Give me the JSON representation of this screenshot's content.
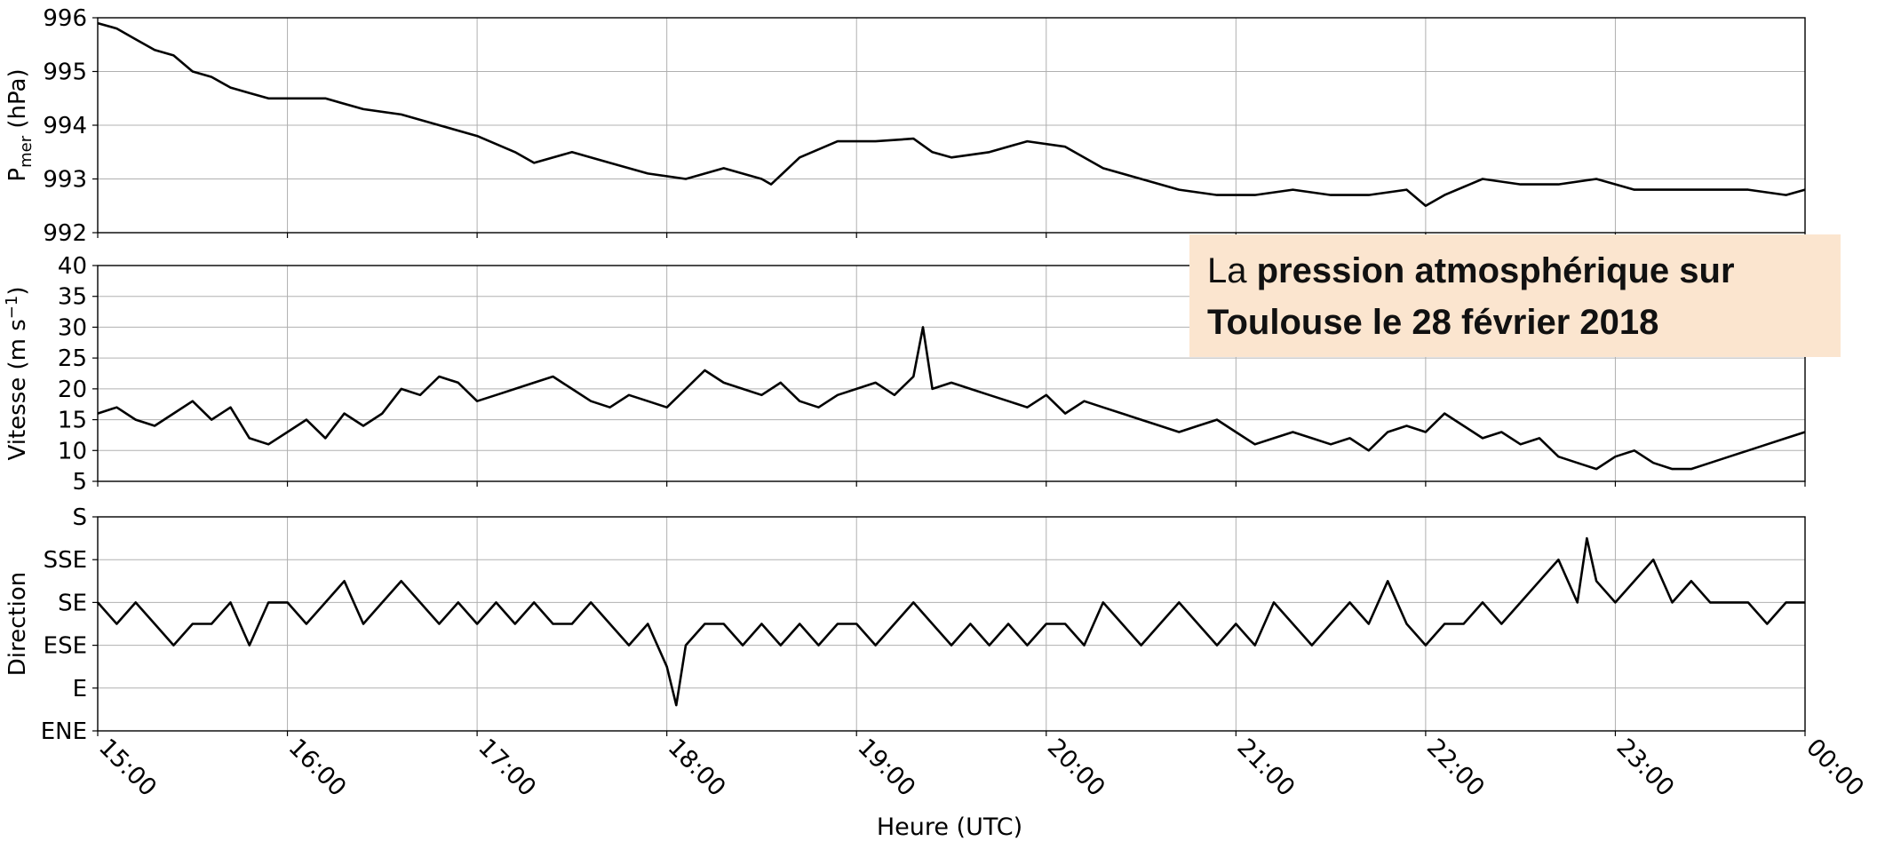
{
  "colors": {
    "line": "#000000",
    "grid": "#b0b0b0",
    "annotation_bg": "#fbe5cf"
  },
  "annotation": {
    "prefix": "La ",
    "line1_bold": "pression atmosphérique sur",
    "line2_bold": "Toulouse le 28 février 2018"
  },
  "chart_data": [
    {
      "type": "line",
      "panel": "pressure",
      "ylabel_main": "P",
      "ylabel_sub": "mer",
      "ylabel_rest": " (hPa)",
      "ylim": [
        992,
        996
      ],
      "yticks": [
        "992",
        "993",
        "994",
        "995",
        "996"
      ],
      "xlim": [
        15,
        24
      ],
      "grid": true,
      "series": [
        {
          "x": [
            15.0,
            15.1,
            15.2,
            15.3,
            15.4,
            15.5,
            15.6,
            15.7,
            15.8,
            15.9,
            16.0,
            16.2,
            16.4,
            16.6,
            16.8,
            17.0,
            17.2,
            17.3,
            17.5,
            17.7,
            17.9,
            18.1,
            18.3,
            18.5,
            18.55,
            18.7,
            18.9,
            19.1,
            19.3,
            19.4,
            19.5,
            19.7,
            19.9,
            20.1,
            20.3,
            20.5,
            20.7,
            20.9,
            21.1,
            21.3,
            21.5,
            21.7,
            21.9,
            22.0,
            22.1,
            22.3,
            22.5,
            22.7,
            22.9,
            23.1,
            23.3,
            23.5,
            23.7,
            23.9,
            24.0
          ],
          "y": [
            995.9,
            995.8,
            995.6,
            995.4,
            995.3,
            995.0,
            994.9,
            994.7,
            994.6,
            994.5,
            994.5,
            994.5,
            994.3,
            994.2,
            994.0,
            993.8,
            993.5,
            993.3,
            993.5,
            993.3,
            993.1,
            993.0,
            993.2,
            993.0,
            992.9,
            993.4,
            993.7,
            993.7,
            993.75,
            993.5,
            993.4,
            993.5,
            993.7,
            993.6,
            993.2,
            993.0,
            992.8,
            992.7,
            992.7,
            992.8,
            992.7,
            992.7,
            992.8,
            992.5,
            992.7,
            993.0,
            992.9,
            992.9,
            993.0,
            992.8,
            992.8,
            992.8,
            992.8,
            992.7,
            992.8
          ]
        }
      ]
    },
    {
      "type": "line",
      "panel": "speed",
      "ylabel": "Vitesse (m s",
      "ylabel_sup": "−1",
      "ylabel_end": ")",
      "ylim": [
        5,
        40
      ],
      "yticks": [
        "5",
        "10",
        "15",
        "20",
        "25",
        "30",
        "35",
        "40"
      ],
      "xlim": [
        15,
        24
      ],
      "grid": true,
      "series": [
        {
          "x": [
            15.0,
            15.1,
            15.2,
            15.3,
            15.4,
            15.5,
            15.6,
            15.7,
            15.8,
            15.9,
            16.0,
            16.1,
            16.2,
            16.3,
            16.4,
            16.5,
            16.6,
            16.7,
            16.8,
            16.9,
            17.0,
            17.1,
            17.2,
            17.3,
            17.4,
            17.5,
            17.6,
            17.7,
            17.8,
            17.9,
            18.0,
            18.1,
            18.2,
            18.3,
            18.4,
            18.5,
            18.6,
            18.7,
            18.8,
            18.9,
            19.0,
            19.1,
            19.2,
            19.3,
            19.35,
            19.4,
            19.5,
            19.6,
            19.7,
            19.8,
            19.9,
            20.0,
            20.1,
            20.2,
            20.3,
            20.4,
            20.5,
            20.6,
            20.7,
            20.8,
            20.9,
            21.0,
            21.1,
            21.2,
            21.3,
            21.4,
            21.5,
            21.6,
            21.7,
            21.8,
            21.9,
            22.0,
            22.1,
            22.2,
            22.3,
            22.4,
            22.5,
            22.6,
            22.7,
            22.8,
            22.9,
            23.0,
            23.1,
            23.2,
            23.3,
            23.4,
            23.5,
            23.6,
            23.7,
            23.8,
            23.9,
            24.0
          ],
          "y": [
            16,
            17,
            15,
            14,
            16,
            18,
            15,
            17,
            12,
            11,
            13,
            15,
            12,
            16,
            14,
            16,
            20,
            19,
            22,
            21,
            18,
            19,
            20,
            21,
            22,
            20,
            18,
            17,
            19,
            18,
            17,
            20,
            23,
            21,
            20,
            19,
            21,
            18,
            17,
            19,
            20,
            21,
            19,
            22,
            30,
            20,
            21,
            20,
            19,
            18,
            17,
            19,
            16,
            18,
            17,
            16,
            15,
            14,
            13,
            14,
            15,
            13,
            11,
            12,
            13,
            12,
            11,
            12,
            10,
            13,
            14,
            13,
            16,
            14,
            12,
            13,
            11,
            12,
            9,
            8,
            7,
            9,
            10,
            8,
            7,
            7,
            8,
            9,
            10,
            11,
            12,
            13
          ]
        }
      ]
    },
    {
      "type": "line",
      "panel": "direction",
      "ylabel": "Direction",
      "ylim": [
        0,
        5
      ],
      "yticks": [
        "ENE",
        "E",
        "ESE",
        "SE",
        "SSE",
        "S"
      ],
      "xlim": [
        15,
        24
      ],
      "xticks": [
        "15:00",
        "16:00",
        "17:00",
        "18:00",
        "19:00",
        "20:00",
        "21:00",
        "22:00",
        "23:00",
        "00:00"
      ],
      "xlabel": "Heure (UTC)",
      "grid": true,
      "series": [
        {
          "x": [
            15.0,
            15.1,
            15.2,
            15.3,
            15.4,
            15.5,
            15.6,
            15.7,
            15.8,
            15.9,
            16.0,
            16.1,
            16.2,
            16.3,
            16.4,
            16.5,
            16.6,
            16.7,
            16.8,
            16.9,
            17.0,
            17.1,
            17.2,
            17.3,
            17.4,
            17.5,
            17.6,
            17.7,
            17.8,
            17.9,
            18.0,
            18.05,
            18.1,
            18.2,
            18.3,
            18.4,
            18.5,
            18.6,
            18.7,
            18.8,
            18.9,
            19.0,
            19.1,
            19.2,
            19.3,
            19.4,
            19.5,
            19.6,
            19.7,
            19.8,
            19.9,
            20.0,
            20.1,
            20.2,
            20.3,
            20.4,
            20.5,
            20.6,
            20.7,
            20.8,
            20.9,
            21.0,
            21.1,
            21.2,
            21.3,
            21.4,
            21.5,
            21.6,
            21.7,
            21.8,
            21.9,
            22.0,
            22.1,
            22.2,
            22.3,
            22.4,
            22.5,
            22.6,
            22.7,
            22.8,
            22.85,
            22.9,
            23.0,
            23.1,
            23.2,
            23.3,
            23.4,
            23.5,
            23.6,
            23.7,
            23.8,
            23.9,
            24.0
          ],
          "y": [
            3.0,
            2.5,
            3.0,
            2.5,
            2.0,
            2.5,
            2.5,
            3.0,
            2.0,
            3.0,
            3.0,
            2.5,
            3.0,
            3.5,
            2.5,
            3.0,
            3.5,
            3.0,
            2.5,
            3.0,
            2.5,
            3.0,
            2.5,
            3.0,
            2.5,
            2.5,
            3.0,
            2.5,
            2.0,
            2.5,
            1.5,
            0.6,
            2.0,
            2.5,
            2.5,
            2.0,
            2.5,
            2.0,
            2.5,
            2.0,
            2.5,
            2.5,
            2.0,
            2.5,
            3.0,
            2.5,
            2.0,
            2.5,
            2.0,
            2.5,
            2.0,
            2.5,
            2.5,
            2.0,
            3.0,
            2.5,
            2.0,
            2.5,
            3.0,
            2.5,
            2.0,
            2.5,
            2.0,
            3.0,
            2.5,
            2.0,
            2.5,
            3.0,
            2.5,
            3.5,
            2.5,
            2.0,
            2.5,
            2.5,
            3.0,
            2.5,
            3.0,
            3.5,
            4.0,
            3.0,
            4.5,
            3.5,
            3.0,
            3.5,
            4.0,
            3.0,
            3.5,
            3.0,
            3.0,
            3.0,
            2.5,
            3.0,
            3.0
          ]
        }
      ]
    }
  ]
}
